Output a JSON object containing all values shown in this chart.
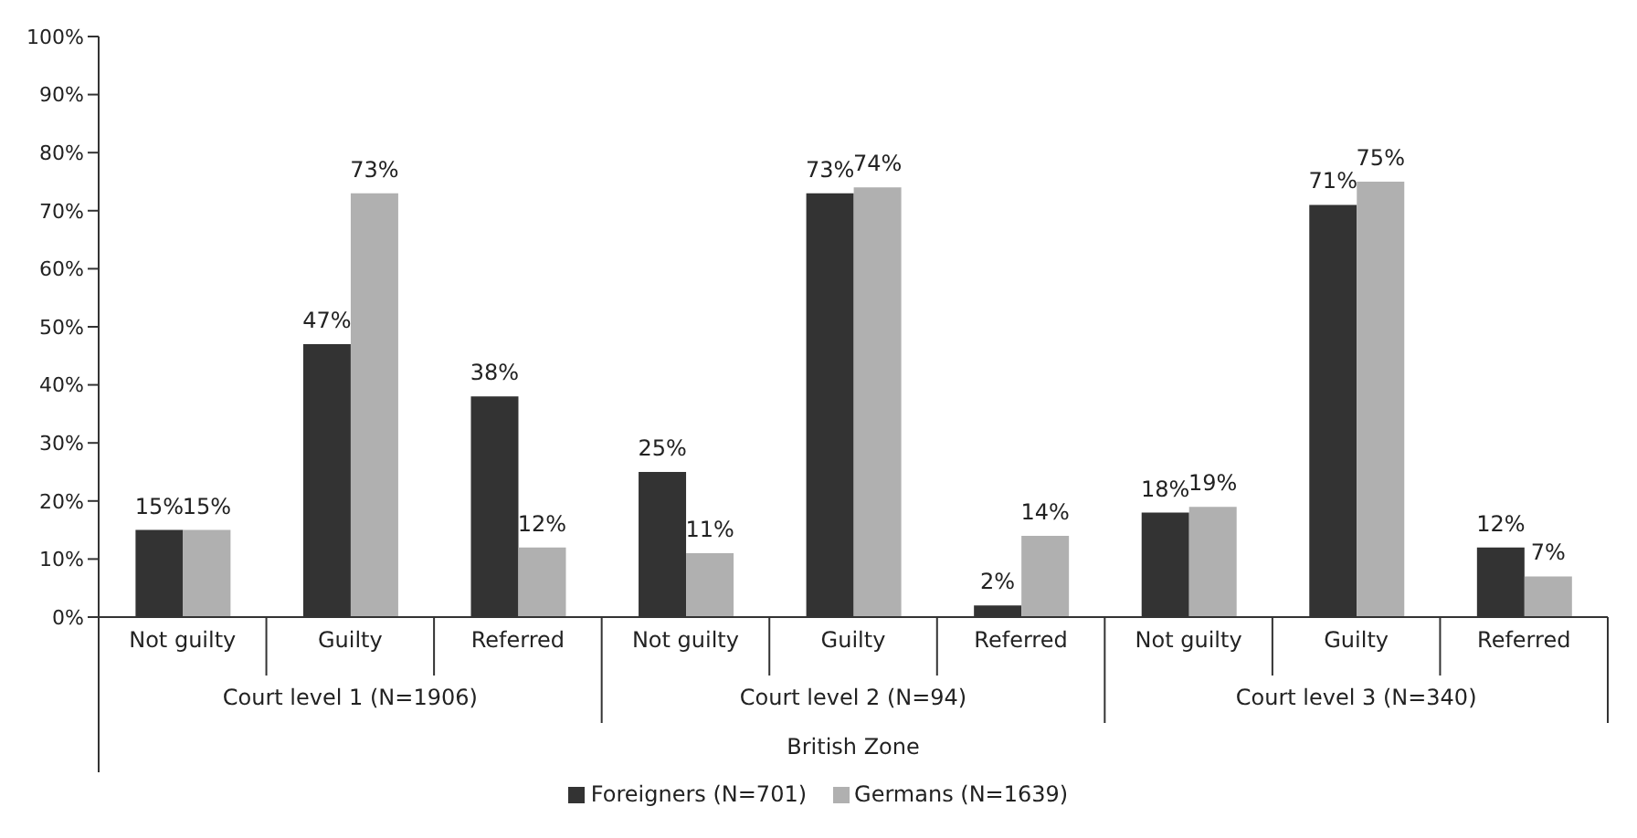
{
  "chart_data": {
    "type": "bar",
    "categories": [
      "Not guilty",
      "Guilty",
      "Referred",
      "Not guilty",
      "Guilty",
      "Referred",
      "Not guilty",
      "Guilty",
      "Referred"
    ],
    "xlabel": "British Zone",
    "annotations": [
      "Court level 1 (N=1906)",
      "Court level 2 (N=94)",
      "Court level 3 (N=340)"
    ],
    "series": [
      {
        "name": "Foreigners (N=701)",
        "color": "#333333",
        "values": [
          15,
          47,
          38,
          25,
          73,
          2,
          18,
          71,
          12
        ],
        "value_labels": [
          "15%",
          "47%",
          "38%",
          "25%",
          "73%",
          "2%",
          "18%",
          "71%",
          "12%"
        ]
      },
      {
        "name": "Germans (N=1639)",
        "color": "#b0b0b0",
        "values": [
          15,
          73,
          12,
          11,
          74,
          14,
          19,
          75,
          7
        ],
        "value_labels": [
          "15%",
          "73%",
          "12%",
          "11%",
          "74%",
          "14%",
          "19%",
          "75%",
          "7%"
        ]
      }
    ],
    "ylim": [
      0,
      100
    ],
    "yticks": [
      {
        "value": 0,
        "label": "0%"
      },
      {
        "value": 10,
        "label": "10%"
      },
      {
        "value": 20,
        "label": "20%"
      },
      {
        "value": 30,
        "label": "30%"
      },
      {
        "value": 40,
        "label": "40%"
      },
      {
        "value": 50,
        "label": "50%"
      },
      {
        "value": 60,
        "label": "60%"
      },
      {
        "value": 70,
        "label": "70%"
      },
      {
        "value": 80,
        "label": "80%"
      },
      {
        "value": 90,
        "label": "90%"
      },
      {
        "value": 100,
        "label": "100%"
      }
    ],
    "grid": false,
    "legend": "bottom"
  }
}
